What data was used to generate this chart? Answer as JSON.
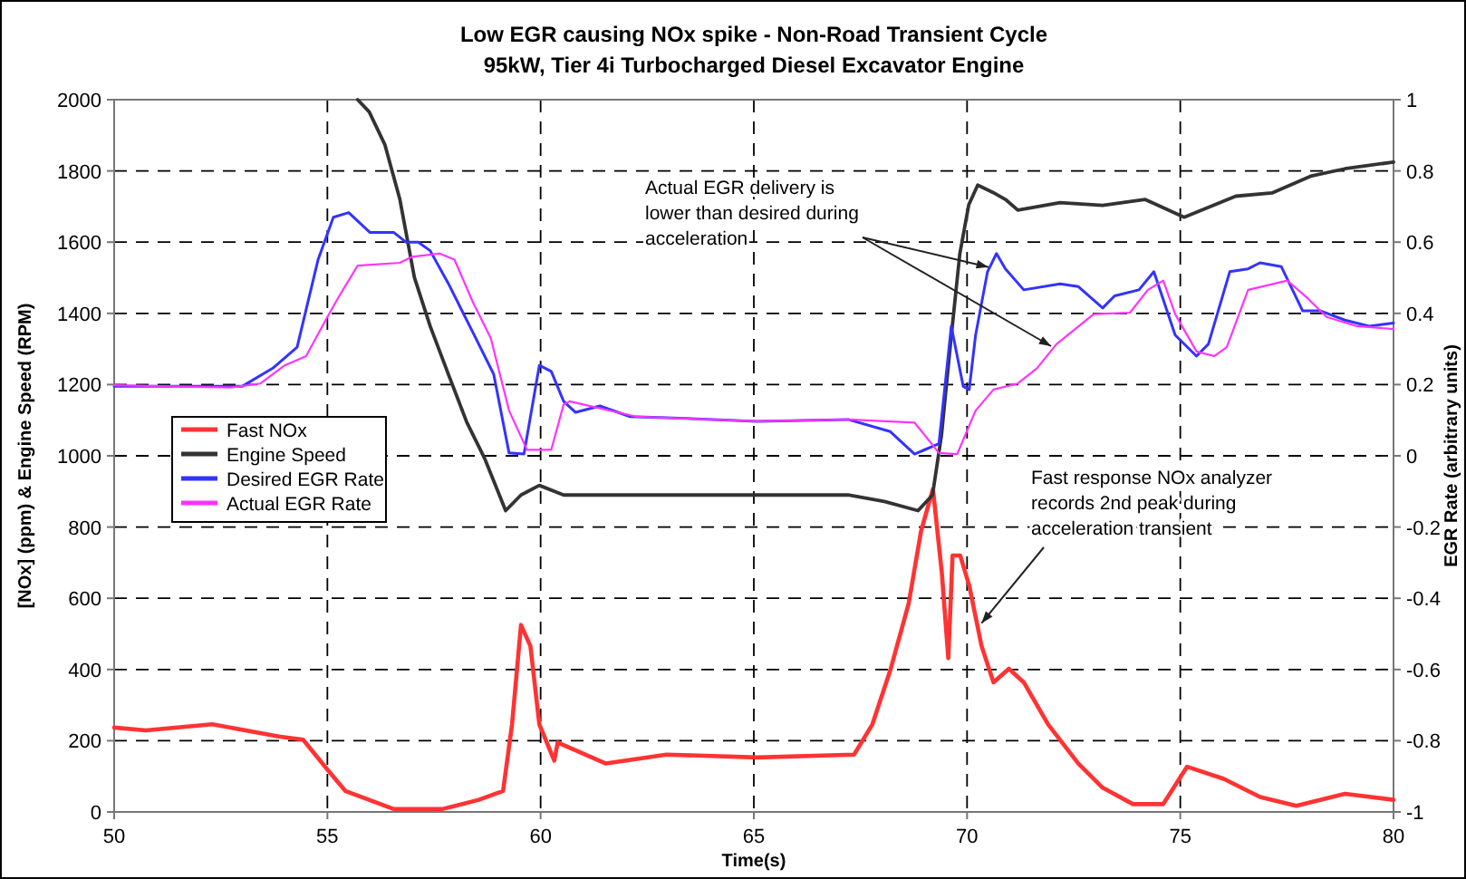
{
  "chart_data": {
    "type": "line",
    "title": "Low EGR causing NOx spike - Non-Road Transient Cycle",
    "subtitle": "95kW, Tier 4i Turbocharged Diesel Excavator Engine",
    "xlabel": "Time(s)",
    "ylabel": "[NOx] (ppm) & Engine Speed (RPM)",
    "y2label": "EGR Rate (arbitrary units)",
    "xlim": [
      50,
      80
    ],
    "xticks": [
      50,
      55,
      60,
      65,
      70,
      75,
      80
    ],
    "ylim": [
      0,
      2000
    ],
    "yticks": [
      0,
      200,
      400,
      600,
      800,
      1000,
      1200,
      1400,
      1600,
      1800,
      2000
    ],
    "y2lim": [
      -1,
      1
    ],
    "y2ticks": [
      -1,
      -0.8,
      -0.6,
      -0.4,
      -0.2,
      0,
      0.2,
      0.4,
      0.6,
      0.8,
      1
    ],
    "grid": true,
    "legend": "left",
    "marker": "none",
    "line_style": "solid",
    "annotations": [
      {
        "text": "Actual EGR delivery is lower than desired during acceleration",
        "x": 70.5,
        "y": 1530
      },
      {
        "text": "Fast response NOx analyzer records 2nd peak during acceleration transient",
        "x": 70.34,
        "y": 530
      }
    ],
    "series": [
      {
        "name": "Fast NOx",
        "color": "#ff3333",
        "x": [
          50,
          50.74,
          52.3,
          53.86,
          54.43,
          55,
          55.42,
          56.56,
          57.69,
          58.55,
          59.12,
          59.33,
          59.54,
          59.76,
          59.97,
          60.32,
          60.4,
          61.53,
          62.95,
          65.08,
          67.35,
          67.78,
          68.2,
          68.63,
          68.92,
          69.2,
          69.41,
          69.56,
          69.66,
          69.84,
          70.05,
          70.34,
          70.62,
          70.98,
          71.33,
          71.9,
          72.61,
          73.18,
          73.89,
          74.6,
          75.16,
          76.02,
          76.87,
          77.72,
          78.86,
          80
        ],
        "values": [
          237,
          229,
          246,
          212,
          203,
          119,
          59,
          8,
          8,
          34,
          59,
          246,
          525,
          466,
          246,
          144,
          195,
          136,
          161,
          153,
          161,
          246,
          398,
          585,
          788,
          907,
          669,
          432,
          720,
          720,
          636,
          466,
          364,
          402,
          364,
          246,
          136,
          68,
          22,
          22,
          127,
          93,
          42,
          17,
          51,
          34
        ]
      },
      {
        "name": "Engine Speed",
        "color": "#333333",
        "x": [
          55.71,
          55.98,
          56.35,
          56.7,
          57.04,
          57.41,
          57.84,
          58.27,
          58.69,
          59.18,
          59.54,
          59.97,
          60.54,
          61.94,
          65.08,
          67.21,
          68.06,
          68.85,
          69.19,
          69.4,
          69.61,
          69.83,
          70.04,
          70.25,
          70.6,
          70.9,
          71.19,
          72.18,
          73.18,
          74.17,
          75.09,
          76.3,
          77.15,
          78.08,
          78.86,
          80
        ],
        "values": [
          2000,
          1966,
          1873,
          1720,
          1501,
          1364,
          1228,
          1094,
          992,
          846,
          890,
          917,
          890,
          890,
          890,
          890,
          872,
          846,
          890,
          1058,
          1313,
          1567,
          1705,
          1760,
          1740,
          1720,
          1690,
          1711,
          1703,
          1720,
          1670,
          1729,
          1738,
          1786,
          1806,
          1825
        ]
      },
      {
        "name": "Desired EGR Rate",
        "color": "#3333ff",
        "axis": "y2",
        "x": [
          50,
          53,
          53.72,
          54.29,
          54.78,
          55.14,
          55.5,
          56,
          56.56,
          56.84,
          57.13,
          57.41,
          57.84,
          58.41,
          58.9,
          59.26,
          59.61,
          59.97,
          60.25,
          60.54,
          60.82,
          61.39,
          62.1,
          62.95,
          65.08,
          67.21,
          68.2,
          68.77,
          69.34,
          69.63,
          69.91,
          70.05,
          70.2,
          70.48,
          70.69,
          70.9,
          71.33,
          72.18,
          72.61,
          73.18,
          73.46,
          74.03,
          74.38,
          74.88,
          75.38,
          75.66,
          76.16,
          76.59,
          76.87,
          77.37,
          77.87,
          78.29,
          78.86,
          79.43,
          80
        ],
        "values": [
          0.195,
          0.195,
          0.246,
          0.305,
          0.55,
          0.67,
          0.683,
          0.627,
          0.627,
          0.6,
          0.6,
          0.576,
          0.483,
          0.347,
          0.229,
          0.008,
          0.005,
          0.254,
          0.237,
          0.153,
          0.122,
          0.14,
          0.11,
          0.107,
          0.097,
          0.102,
          0.068,
          0.005,
          0.034,
          0.364,
          0.195,
          0.186,
          0.339,
          0.517,
          0.568,
          0.525,
          0.466,
          0.483,
          0.475,
          0.415,
          0.449,
          0.466,
          0.517,
          0.339,
          0.28,
          0.314,
          0.517,
          0.525,
          0.542,
          0.531,
          0.407,
          0.407,
          0.381,
          0.364,
          0.373
        ]
      },
      {
        "name": "Actual EGR Rate",
        "color": "#ff33ff",
        "axis": "y2",
        "x": [
          50,
          52.73,
          53.43,
          54,
          54.5,
          55,
          55.28,
          55.71,
          56.7,
          56.99,
          57.63,
          57.98,
          58.41,
          58.83,
          59.26,
          59.68,
          60.25,
          60.54,
          60.68,
          62.24,
          65.08,
          67.21,
          68.77,
          69.34,
          69.77,
          70.2,
          70.62,
          71.19,
          71.64,
          72.1,
          72.97,
          73.82,
          74.24,
          74.6,
          74.88,
          75.38,
          75.8,
          76.09,
          76.59,
          77.51,
          78,
          78.43,
          79.14,
          80
        ],
        "values": [
          0.198,
          0.192,
          0.203,
          0.254,
          0.28,
          0.39,
          0.449,
          0.534,
          0.542,
          0.559,
          0.568,
          0.551,
          0.432,
          0.331,
          0.127,
          0.017,
          0.017,
          0.144,
          0.153,
          0.11,
          0.097,
          0.102,
          0.093,
          0.008,
          0.005,
          0.127,
          0.186,
          0.203,
          0.246,
          0.314,
          0.398,
          0.402,
          0.466,
          0.492,
          0.398,
          0.293,
          0.28,
          0.305,
          0.466,
          0.492,
          0.441,
          0.39,
          0.364,
          0.356
        ]
      }
    ]
  }
}
